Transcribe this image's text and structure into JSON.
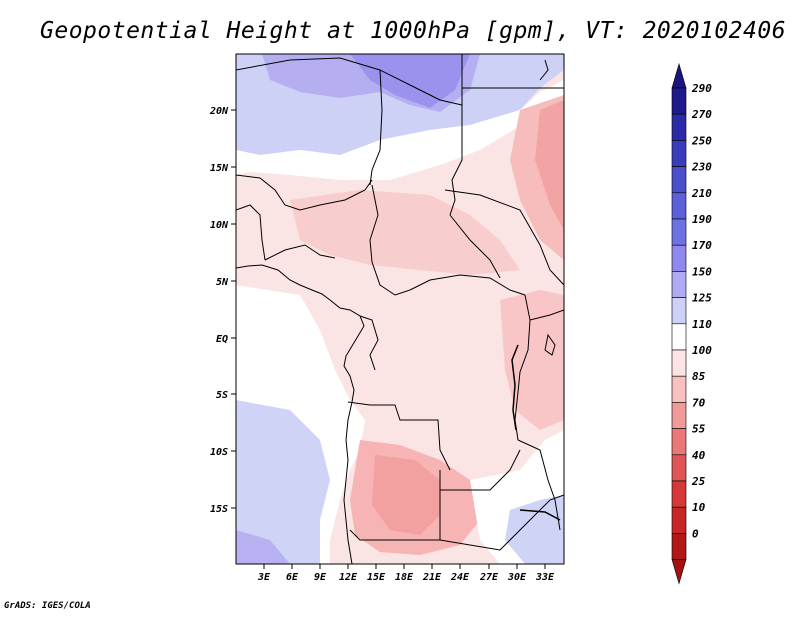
{
  "title": "Geopotential Height at 1000hPa [gpm], VT: 2020102406",
  "credit": "GrADS: IGES/COLA",
  "map": {
    "lat_labels": [
      "20N",
      "15N",
      "10N",
      "5N",
      "EQ",
      "5S",
      "10S",
      "15S"
    ],
    "lon_labels": [
      "3E",
      "6E",
      "9E",
      "12E",
      "15E",
      "18E",
      "21E",
      "24E",
      "27E",
      "30E",
      "33E"
    ],
    "region": "Central Africa"
  },
  "legend": {
    "levels": [
      "290",
      "270",
      "250",
      "230",
      "210",
      "190",
      "170",
      "150",
      "125",
      "110",
      "100",
      "85",
      "70",
      "55",
      "40",
      "25",
      "10",
      "0"
    ],
    "colors": [
      "#1f1a8c",
      "#2a2ba8",
      "#3a3dbb",
      "#4a4fcc",
      "#5b61d9",
      "#6d72e2",
      "#8f88ee",
      "#b0aaf4",
      "#cdd0f7",
      "#ffffff",
      "#fde3e3",
      "#f8c0c0",
      "#f29a9a",
      "#ea7878",
      "#e05555",
      "#d63838",
      "#c72626",
      "#b21818"
    ],
    "top_color": "#1a1580",
    "bottom_color": "#a51010"
  },
  "colors": {
    "land_line": "#000000",
    "field_blue": "#cfd4f6",
    "field_blue_dark": "#b2adf2",
    "field_pink": "#fbe2e2",
    "field_pink_dark": "#f6b8b8"
  }
}
